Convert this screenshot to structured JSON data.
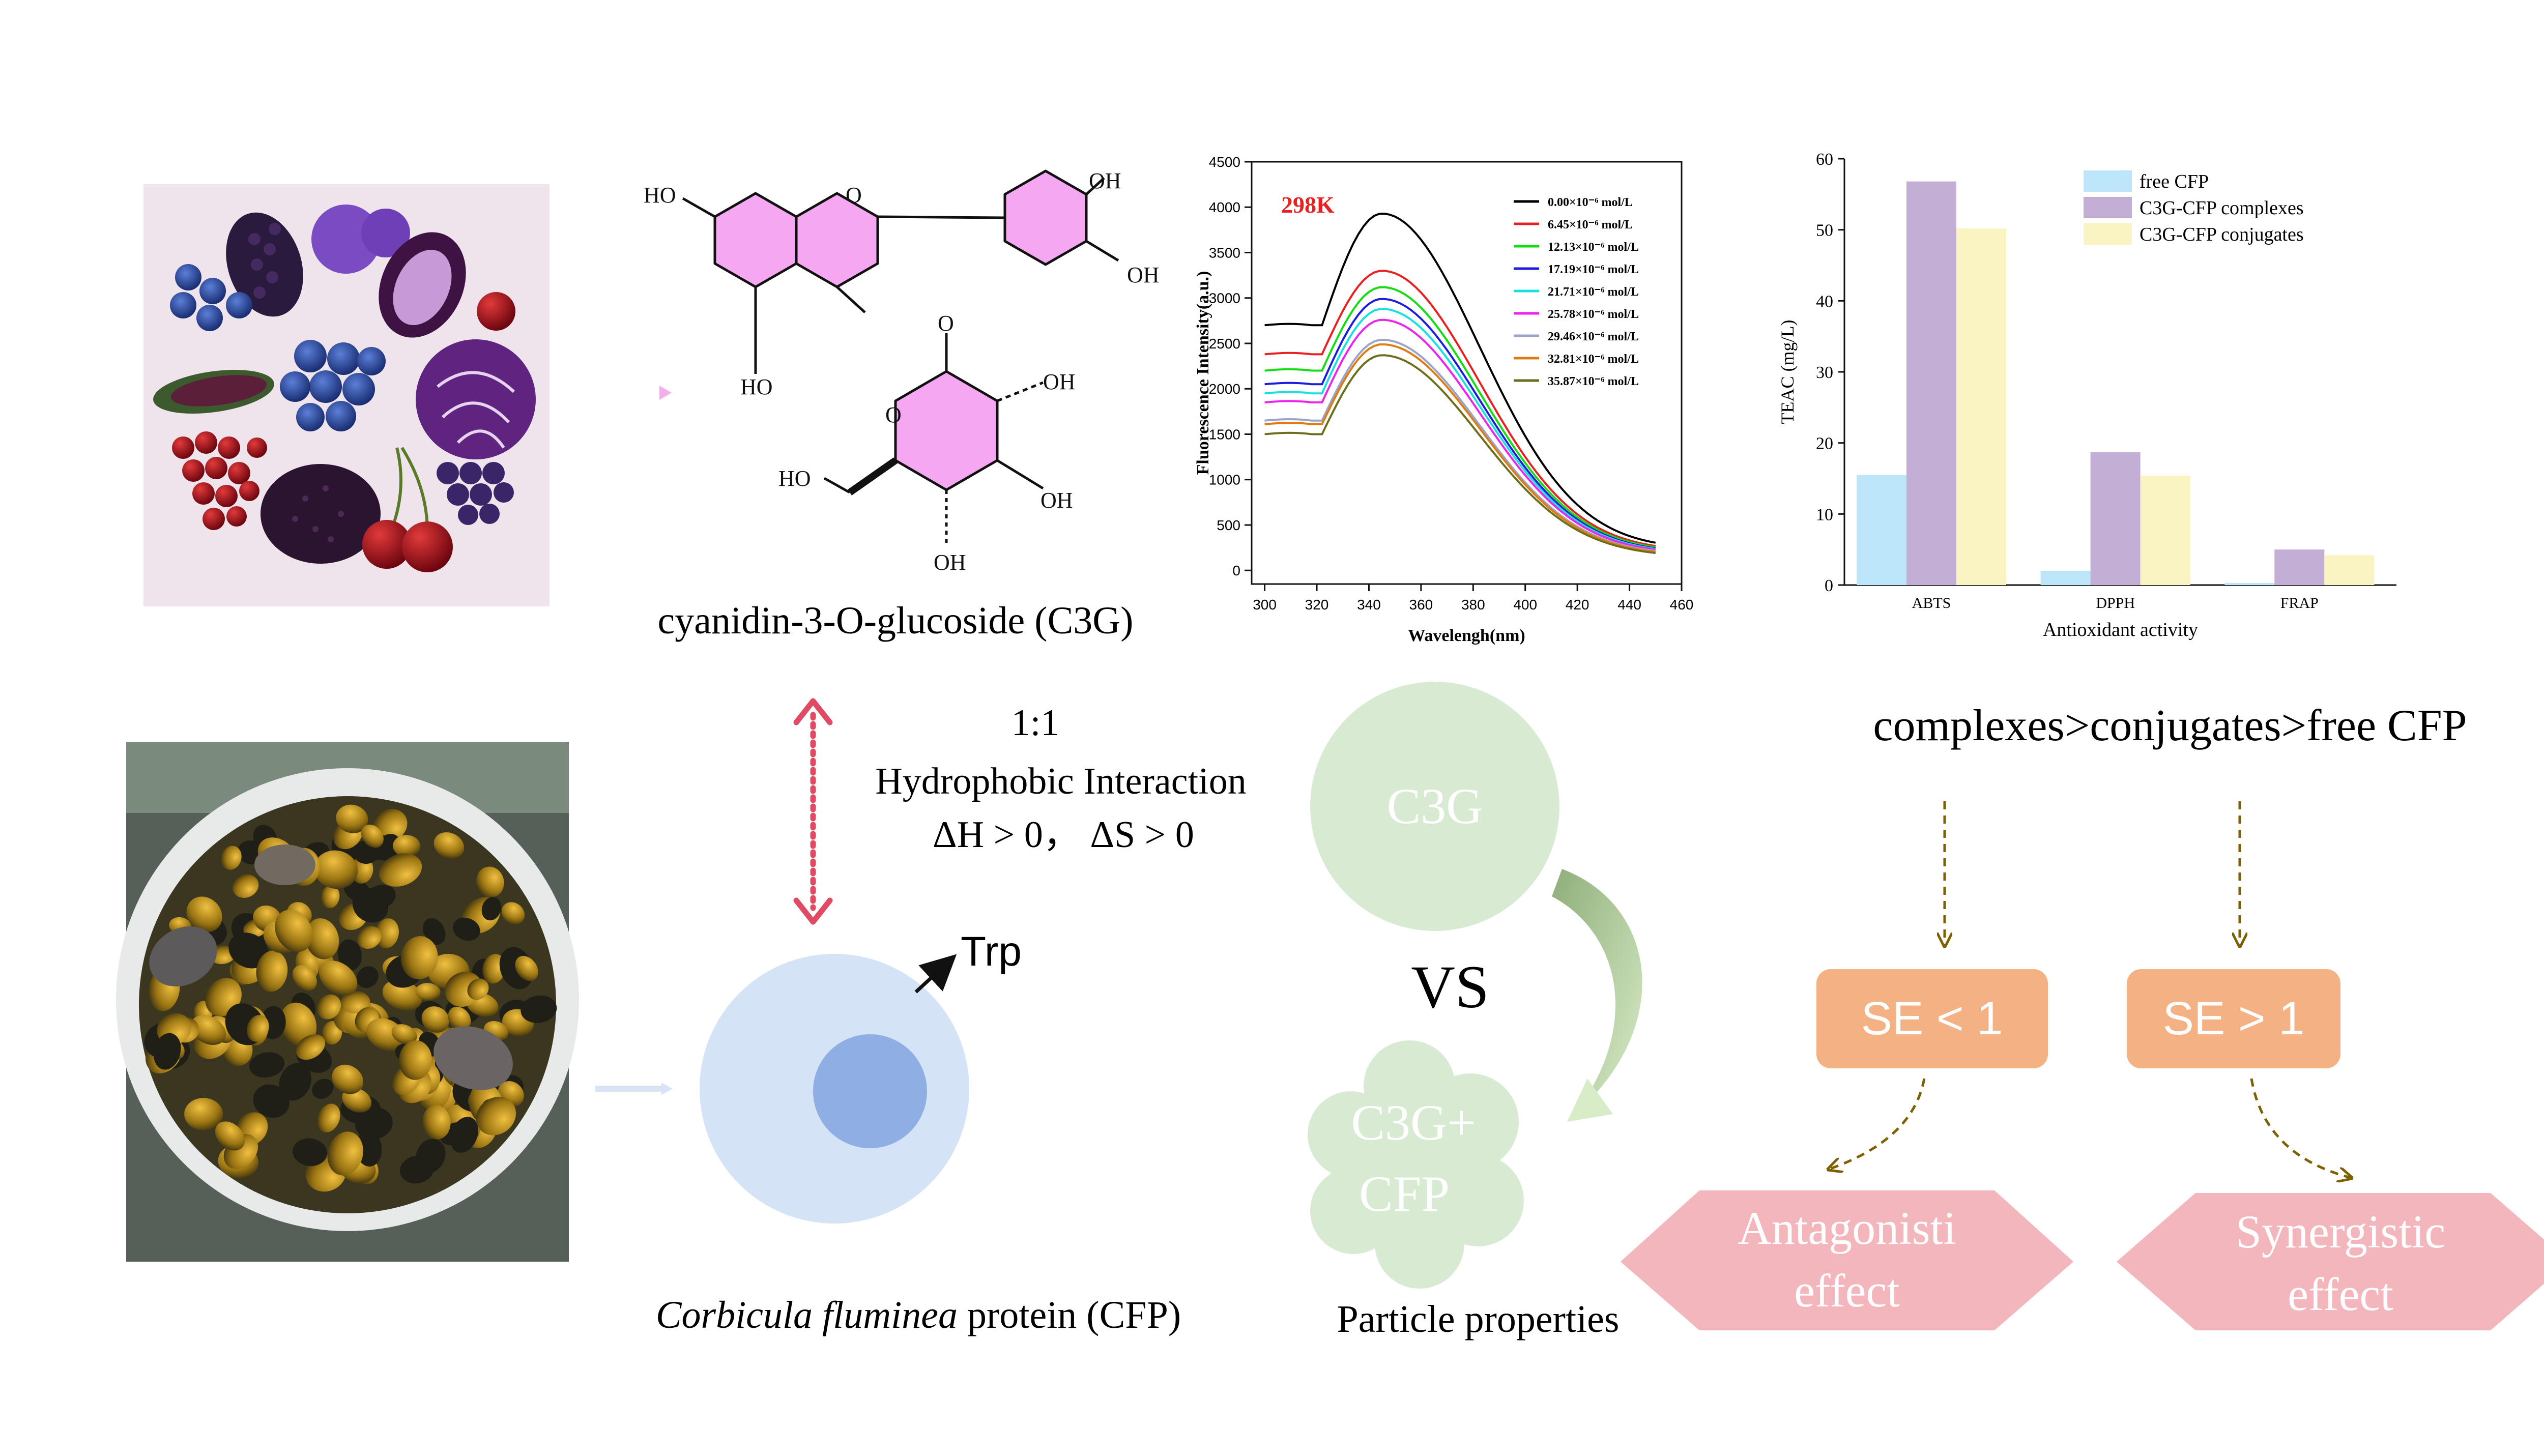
{
  "colors": {
    "glucose_ring": "#f5a8f1",
    "arrow_red": "#e04a62",
    "soft_green": "#d9ead3",
    "arrow_green": "#9bbd84",
    "cfp_circle": "#d5e3f7",
    "cfp_core": "#8faee3",
    "se_box": "#f4b183",
    "hexagon_pink": "#f4b6bd",
    "dashed_brown": "#7f6000",
    "bar_free": "#bde6fb",
    "bar_complexes": "#c3aed6",
    "bar_conjugates": "#faf4c2"
  },
  "molecule": {
    "caption": "cyanidin-3-O-glucoside (C3G)",
    "atoms": [
      "OH",
      "OH",
      "OH",
      "HO",
      "O",
      "O",
      "OH",
      "HO",
      "OH",
      "OH",
      "O"
    ]
  },
  "interaction": {
    "ratio": "1:1",
    "type": "Hydrophobic Interaction",
    "thermo": "ΔH > 0， ΔS > 0"
  },
  "protein": {
    "residue": "Trp",
    "caption_italic": "Corbicula fluminea",
    "caption_rest": " protein (CFP)"
  },
  "particles": {
    "c3g": "C3G",
    "vs": "VS",
    "mix_line1": "C3G+",
    "mix_line2": "CFP",
    "caption": "Particle properties"
  },
  "ranking": "complexes>conjugates>free CFP",
  "se_boxes": [
    "SE < 1",
    "SE > 1"
  ],
  "effects": [
    {
      "line1": "Antagonisti",
      "line2": "effect"
    },
    {
      "line1": "Synergistic",
      "line2": "effect"
    }
  ],
  "fluor_chart": {
    "type": "line",
    "title": "298K",
    "xlabel": "Wavelengh(nm)",
    "ylabel": "Fluorescence Intensity(a.u.)",
    "xlim": [
      295,
      460
    ],
    "ylim": [
      -150,
      4500
    ],
    "xticks": [
      300,
      320,
      340,
      360,
      380,
      400,
      420,
      440,
      460
    ],
    "yticks": [
      0,
      500,
      1000,
      1500,
      2000,
      2500,
      3000,
      3500,
      4000,
      4500
    ],
    "series": [
      {
        "name": "0.00×10⁻⁶ mol/L",
        "color": "#000000",
        "start": 2700,
        "peak": 3930
      },
      {
        "name": "6.45×10⁻⁶ mol/L",
        "color": "#e8201f",
        "start": 2380,
        "peak": 3300
      },
      {
        "name": "12.13×10⁻⁶ mol/L",
        "color": "#11dd11",
        "start": 2200,
        "peak": 3120
      },
      {
        "name": "17.19×10⁻⁶ mol/L",
        "color": "#1c1ce0",
        "start": 2050,
        "peak": 2990
      },
      {
        "name": "21.71×10⁻⁶ mol/L",
        "color": "#17e0e0",
        "start": 1950,
        "peak": 2880
      },
      {
        "name": "25.78×10⁻⁶ mol/L",
        "color": "#ee22ee",
        "start": 1850,
        "peak": 2760
      },
      {
        "name": "29.46×10⁻⁶ mol/L",
        "color": "#9aa2ce",
        "start": 1650,
        "peak": 2540
      },
      {
        "name": "32.81×10⁻⁶ mol/L",
        "color": "#e07b10",
        "start": 1610,
        "peak": 2490
      },
      {
        "name": "35.87×10⁻⁶ mol/L",
        "color": "#6e6e1a",
        "start": 1500,
        "peak": 2370
      }
    ]
  },
  "teac_chart": {
    "type": "bar",
    "xlabel": "Antioxidant activity",
    "ylabel": "TEAC (mg/L)",
    "ylim": [
      0,
      60
    ],
    "yticks": [
      0,
      10,
      20,
      30,
      40,
      50,
      60
    ],
    "categories": [
      "ABTS",
      "DPPH",
      "FRAP"
    ],
    "series": [
      {
        "name": "free  CFP",
        "values": [
          15.5,
          2.0,
          0.3
        ]
      },
      {
        "name": "C3G-CFP complexes",
        "values": [
          56.8,
          18.7,
          5.0
        ]
      },
      {
        "name": "C3G-CFP conjugates",
        "values": [
          50.2,
          15.4,
          4.2
        ]
      }
    ]
  }
}
